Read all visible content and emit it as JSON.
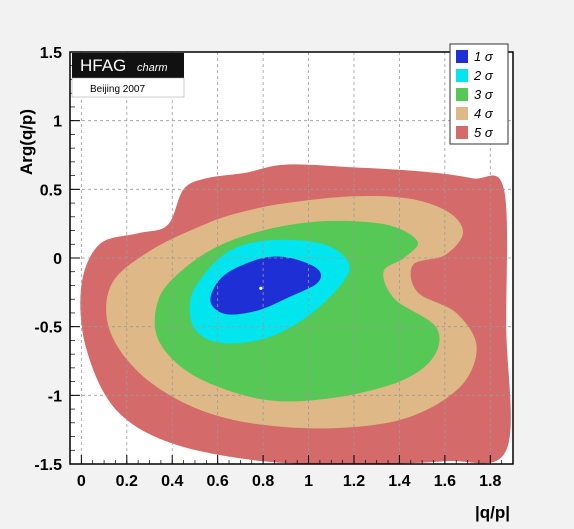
{
  "chart_data": {
    "type": "contour",
    "title": "",
    "xlabel": "|q/p|",
    "ylabel": "Arg(q/p)",
    "xlim": [
      -0.05,
      1.9
    ],
    "ylim": [
      -1.5,
      1.5
    ],
    "grid": true,
    "x_ticks": [
      "0",
      "0.2",
      "0.4",
      "0.6",
      "0.8",
      "1",
      "1.2",
      "1.4",
      "1.6",
      "1.8"
    ],
    "x_tick_values": [
      0,
      0.2,
      0.4,
      0.6,
      0.8,
      1.0,
      1.2,
      1.4,
      1.6,
      1.8
    ],
    "y_ticks": [
      "1.5",
      "1",
      "0.5",
      "0",
      "-0.5",
      "-1",
      "-1.5"
    ],
    "y_tick_values": [
      1.5,
      1.0,
      0.5,
      0,
      -0.5,
      -1.0,
      -1.5
    ],
    "legend_position": "top-right",
    "badge": {
      "title": "HFAG",
      "subtitle": "charm",
      "note": "Beijing 2007"
    },
    "best_fit": {
      "x": 0.79,
      "y": -0.22
    },
    "series": [
      {
        "name": "5 σ",
        "color": "#d46a6a",
        "points": [
          [
            0.72,
            0.62
          ],
          [
            0.9,
            0.68
          ],
          [
            1.2,
            0.66
          ],
          [
            1.5,
            0.63
          ],
          [
            1.72,
            0.58
          ],
          [
            1.86,
            0.5
          ],
          [
            1.87,
            -0.5
          ],
          [
            1.87,
            -1.4
          ],
          [
            1.6,
            -1.48
          ],
          [
            1.2,
            -1.5
          ],
          [
            0.8,
            -1.48
          ],
          [
            0.4,
            -1.35
          ],
          [
            0.15,
            -1.1
          ],
          [
            0.02,
            -0.65
          ],
          [
            0.0,
            -0.2
          ],
          [
            0.08,
            0.1
          ],
          [
            0.25,
            0.18
          ],
          [
            0.38,
            0.24
          ],
          [
            0.45,
            0.5
          ],
          [
            0.55,
            0.58
          ]
        ]
      },
      {
        "name": "4 σ",
        "color": "#deb887",
        "points": [
          [
            0.9,
            0.4
          ],
          [
            1.2,
            0.45
          ],
          [
            1.45,
            0.43
          ],
          [
            1.62,
            0.33
          ],
          [
            1.68,
            0.18
          ],
          [
            1.6,
            0.02
          ],
          [
            1.46,
            -0.05
          ],
          [
            1.48,
            -0.25
          ],
          [
            1.65,
            -0.4
          ],
          [
            1.74,
            -0.65
          ],
          [
            1.66,
            -0.95
          ],
          [
            1.4,
            -1.18
          ],
          [
            1.0,
            -1.24
          ],
          [
            0.6,
            -1.15
          ],
          [
            0.3,
            -0.9
          ],
          [
            0.13,
            -0.55
          ],
          [
            0.13,
            -0.2
          ],
          [
            0.3,
            0.05
          ],
          [
            0.55,
            0.25
          ],
          [
            0.72,
            0.34
          ]
        ]
      },
      {
        "name": "3 σ",
        "color": "#55c855",
        "points": [
          [
            0.85,
            0.22
          ],
          [
            1.1,
            0.27
          ],
          [
            1.35,
            0.24
          ],
          [
            1.48,
            0.12
          ],
          [
            1.42,
            0.0
          ],
          [
            1.33,
            -0.1
          ],
          [
            1.38,
            -0.3
          ],
          [
            1.56,
            -0.5
          ],
          [
            1.55,
            -0.72
          ],
          [
            1.4,
            -0.9
          ],
          [
            1.1,
            -1.02
          ],
          [
            0.8,
            -1.03
          ],
          [
            0.5,
            -0.86
          ],
          [
            0.34,
            -0.6
          ],
          [
            0.34,
            -0.3
          ],
          [
            0.45,
            -0.08
          ],
          [
            0.62,
            0.1
          ]
        ]
      },
      {
        "name": "2 σ",
        "color": "#00e5ee",
        "points": [
          [
            0.78,
            0.12
          ],
          [
            0.95,
            0.13
          ],
          [
            1.1,
            0.08
          ],
          [
            1.18,
            -0.05
          ],
          [
            1.14,
            -0.2
          ],
          [
            1.0,
            -0.42
          ],
          [
            0.82,
            -0.58
          ],
          [
            0.62,
            -0.62
          ],
          [
            0.5,
            -0.52
          ],
          [
            0.48,
            -0.3
          ],
          [
            0.55,
            -0.1
          ],
          [
            0.65,
            0.05
          ]
        ]
      },
      {
        "name": "1 σ",
        "color": "#1f2fd6",
        "points": [
          [
            0.8,
            0.0
          ],
          [
            0.92,
            0.0
          ],
          [
            1.04,
            -0.08
          ],
          [
            1.04,
            -0.18
          ],
          [
            0.92,
            -0.28
          ],
          [
            0.78,
            -0.38
          ],
          [
            0.64,
            -0.41
          ],
          [
            0.57,
            -0.33
          ],
          [
            0.59,
            -0.2
          ],
          [
            0.66,
            -0.09
          ]
        ]
      }
    ]
  }
}
